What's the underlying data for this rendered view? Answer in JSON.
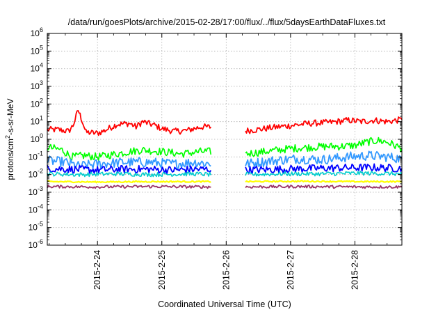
{
  "chart_data": {
    "type": "line",
    "title": "/data/run/goesPlots/archive/2015-02-28/17:00/flux/../flux/5daysEarthDataFluxes.txt",
    "xlabel": "Coordinated Universal Time (UTC)",
    "ylabel_parts": {
      "pre": "protons/cm",
      "sup": "2",
      "post": "-s-sr-MeV"
    },
    "yscale": "log",
    "ylim_exp": [
      -6,
      6
    ],
    "y_ticks": [
      {
        "base": "10",
        "exp": "-6"
      },
      {
        "base": "10",
        "exp": "-5"
      },
      {
        "base": "10",
        "exp": "-4"
      },
      {
        "base": "10",
        "exp": "-3"
      },
      {
        "base": "10",
        "exp": "-2"
      },
      {
        "base": "10",
        "exp": "-1"
      },
      {
        "base": "10",
        "exp": "0"
      },
      {
        "base": "10",
        "exp": "1"
      },
      {
        "base": "10",
        "exp": "2"
      },
      {
        "base": "10",
        "exp": "3"
      },
      {
        "base": "10",
        "exp": "4"
      },
      {
        "base": "10",
        "exp": "5"
      },
      {
        "base": "10",
        "exp": "6"
      }
    ],
    "xlim_days": [
      23.22,
      28.73
    ],
    "x_ticks": [
      {
        "label": "2015-2-24",
        "day": 24
      },
      {
        "label": "2015-2-25",
        "day": 25
      },
      {
        "label": "2015-2-26",
        "day": 26
      },
      {
        "label": "2015-2-27",
        "day": 27
      },
      {
        "label": "2015-2-28",
        "day": 28
      }
    ],
    "grid": true,
    "data_gap_days": [
      25.78,
      26.3
    ],
    "series": [
      {
        "color": "#ff0000",
        "points": [
          [
            23.22,
            3.5
          ],
          [
            23.4,
            3.5
          ],
          [
            23.55,
            2.8
          ],
          [
            23.62,
            6
          ],
          [
            23.7,
            45
          ],
          [
            23.76,
            12
          ],
          [
            23.82,
            2.5
          ],
          [
            24.0,
            2.2
          ],
          [
            24.1,
            3
          ],
          [
            24.3,
            7
          ],
          [
            24.5,
            8
          ],
          [
            24.6,
            5
          ],
          [
            24.7,
            10
          ],
          [
            24.9,
            6
          ],
          [
            25.0,
            4
          ],
          [
            25.2,
            2.8
          ],
          [
            25.4,
            3.2
          ],
          [
            25.6,
            5
          ],
          [
            25.7,
            5
          ],
          [
            25.78,
            5
          ],
          [
            26.3,
            3
          ],
          [
            26.5,
            3.6
          ],
          [
            26.8,
            5
          ],
          [
            27.0,
            6
          ],
          [
            27.3,
            8
          ],
          [
            27.6,
            9
          ],
          [
            27.9,
            12
          ],
          [
            28.1,
            10
          ],
          [
            28.3,
            12
          ],
          [
            28.5,
            10
          ],
          [
            28.73,
            13
          ]
        ]
      },
      {
        "color": "#00ff00",
        "points": [
          [
            23.22,
            0.35
          ],
          [
            23.45,
            0.25
          ],
          [
            23.6,
            0.1
          ],
          [
            23.8,
            0.12
          ],
          [
            24.0,
            0.1
          ],
          [
            24.2,
            0.13
          ],
          [
            24.5,
            0.2
          ],
          [
            24.7,
            0.25
          ],
          [
            25.0,
            0.2
          ],
          [
            25.3,
            0.15
          ],
          [
            25.6,
            0.2
          ],
          [
            25.78,
            0.2
          ],
          [
            26.3,
            0.15
          ],
          [
            26.6,
            0.2
          ],
          [
            27.0,
            0.3
          ],
          [
            27.3,
            0.35
          ],
          [
            27.6,
            0.4
          ],
          [
            27.8,
            0.4
          ],
          [
            28.0,
            0.45
          ],
          [
            28.2,
            0.7
          ],
          [
            28.35,
            0.85
          ],
          [
            28.5,
            0.7
          ],
          [
            28.73,
            0.3
          ]
        ]
      },
      {
        "color": "#3399ff",
        "points": [
          [
            23.22,
            0.06
          ],
          [
            23.5,
            0.05
          ],
          [
            23.7,
            0.03
          ],
          [
            24.0,
            0.04
          ],
          [
            24.4,
            0.05
          ],
          [
            24.8,
            0.05
          ],
          [
            25.2,
            0.04
          ],
          [
            25.5,
            0.05
          ],
          [
            25.78,
            0.04
          ],
          [
            26.3,
            0.04
          ],
          [
            26.7,
            0.06
          ],
          [
            27.1,
            0.08
          ],
          [
            27.5,
            0.07
          ],
          [
            27.9,
            0.1
          ],
          [
            28.2,
            0.12
          ],
          [
            28.5,
            0.1
          ],
          [
            28.73,
            0.08
          ]
        ]
      },
      {
        "color": "#0000ff",
        "points": [
          [
            23.22,
            0.022
          ],
          [
            23.6,
            0.02
          ],
          [
            24.0,
            0.018
          ],
          [
            24.4,
            0.02
          ],
          [
            24.8,
            0.02
          ],
          [
            25.2,
            0.018
          ],
          [
            25.5,
            0.02
          ],
          [
            25.78,
            0.02
          ],
          [
            26.3,
            0.018
          ],
          [
            26.8,
            0.02
          ],
          [
            27.3,
            0.022
          ],
          [
            27.8,
            0.024
          ],
          [
            28.3,
            0.025
          ],
          [
            28.73,
            0.022
          ]
        ]
      },
      {
        "color": "#00cccc",
        "points": [
          [
            23.22,
            0.011
          ],
          [
            23.7,
            0.01
          ],
          [
            24.3,
            0.011
          ],
          [
            24.9,
            0.01
          ],
          [
            25.5,
            0.011
          ],
          [
            25.78,
            0.01
          ],
          [
            26.3,
            0.01
          ],
          [
            26.9,
            0.011
          ],
          [
            27.5,
            0.011
          ],
          [
            28.1,
            0.012
          ],
          [
            28.73,
            0.011
          ]
        ]
      },
      {
        "color": "#ffff00",
        "points": [
          [
            23.22,
            0.004
          ],
          [
            24.0,
            0.0038
          ],
          [
            24.8,
            0.004
          ],
          [
            25.78,
            0.004
          ],
          [
            26.3,
            0.004
          ],
          [
            27.2,
            0.0042
          ],
          [
            28.0,
            0.004
          ],
          [
            28.73,
            0.004
          ]
        ]
      },
      {
        "color": "#993366",
        "points": [
          [
            23.22,
            0.0021
          ],
          [
            24.0,
            0.002
          ],
          [
            24.8,
            0.0021
          ],
          [
            25.78,
            0.002
          ],
          [
            26.3,
            0.002
          ],
          [
            27.2,
            0.0021
          ],
          [
            28.0,
            0.002
          ],
          [
            28.73,
            0.002
          ]
        ]
      }
    ]
  }
}
